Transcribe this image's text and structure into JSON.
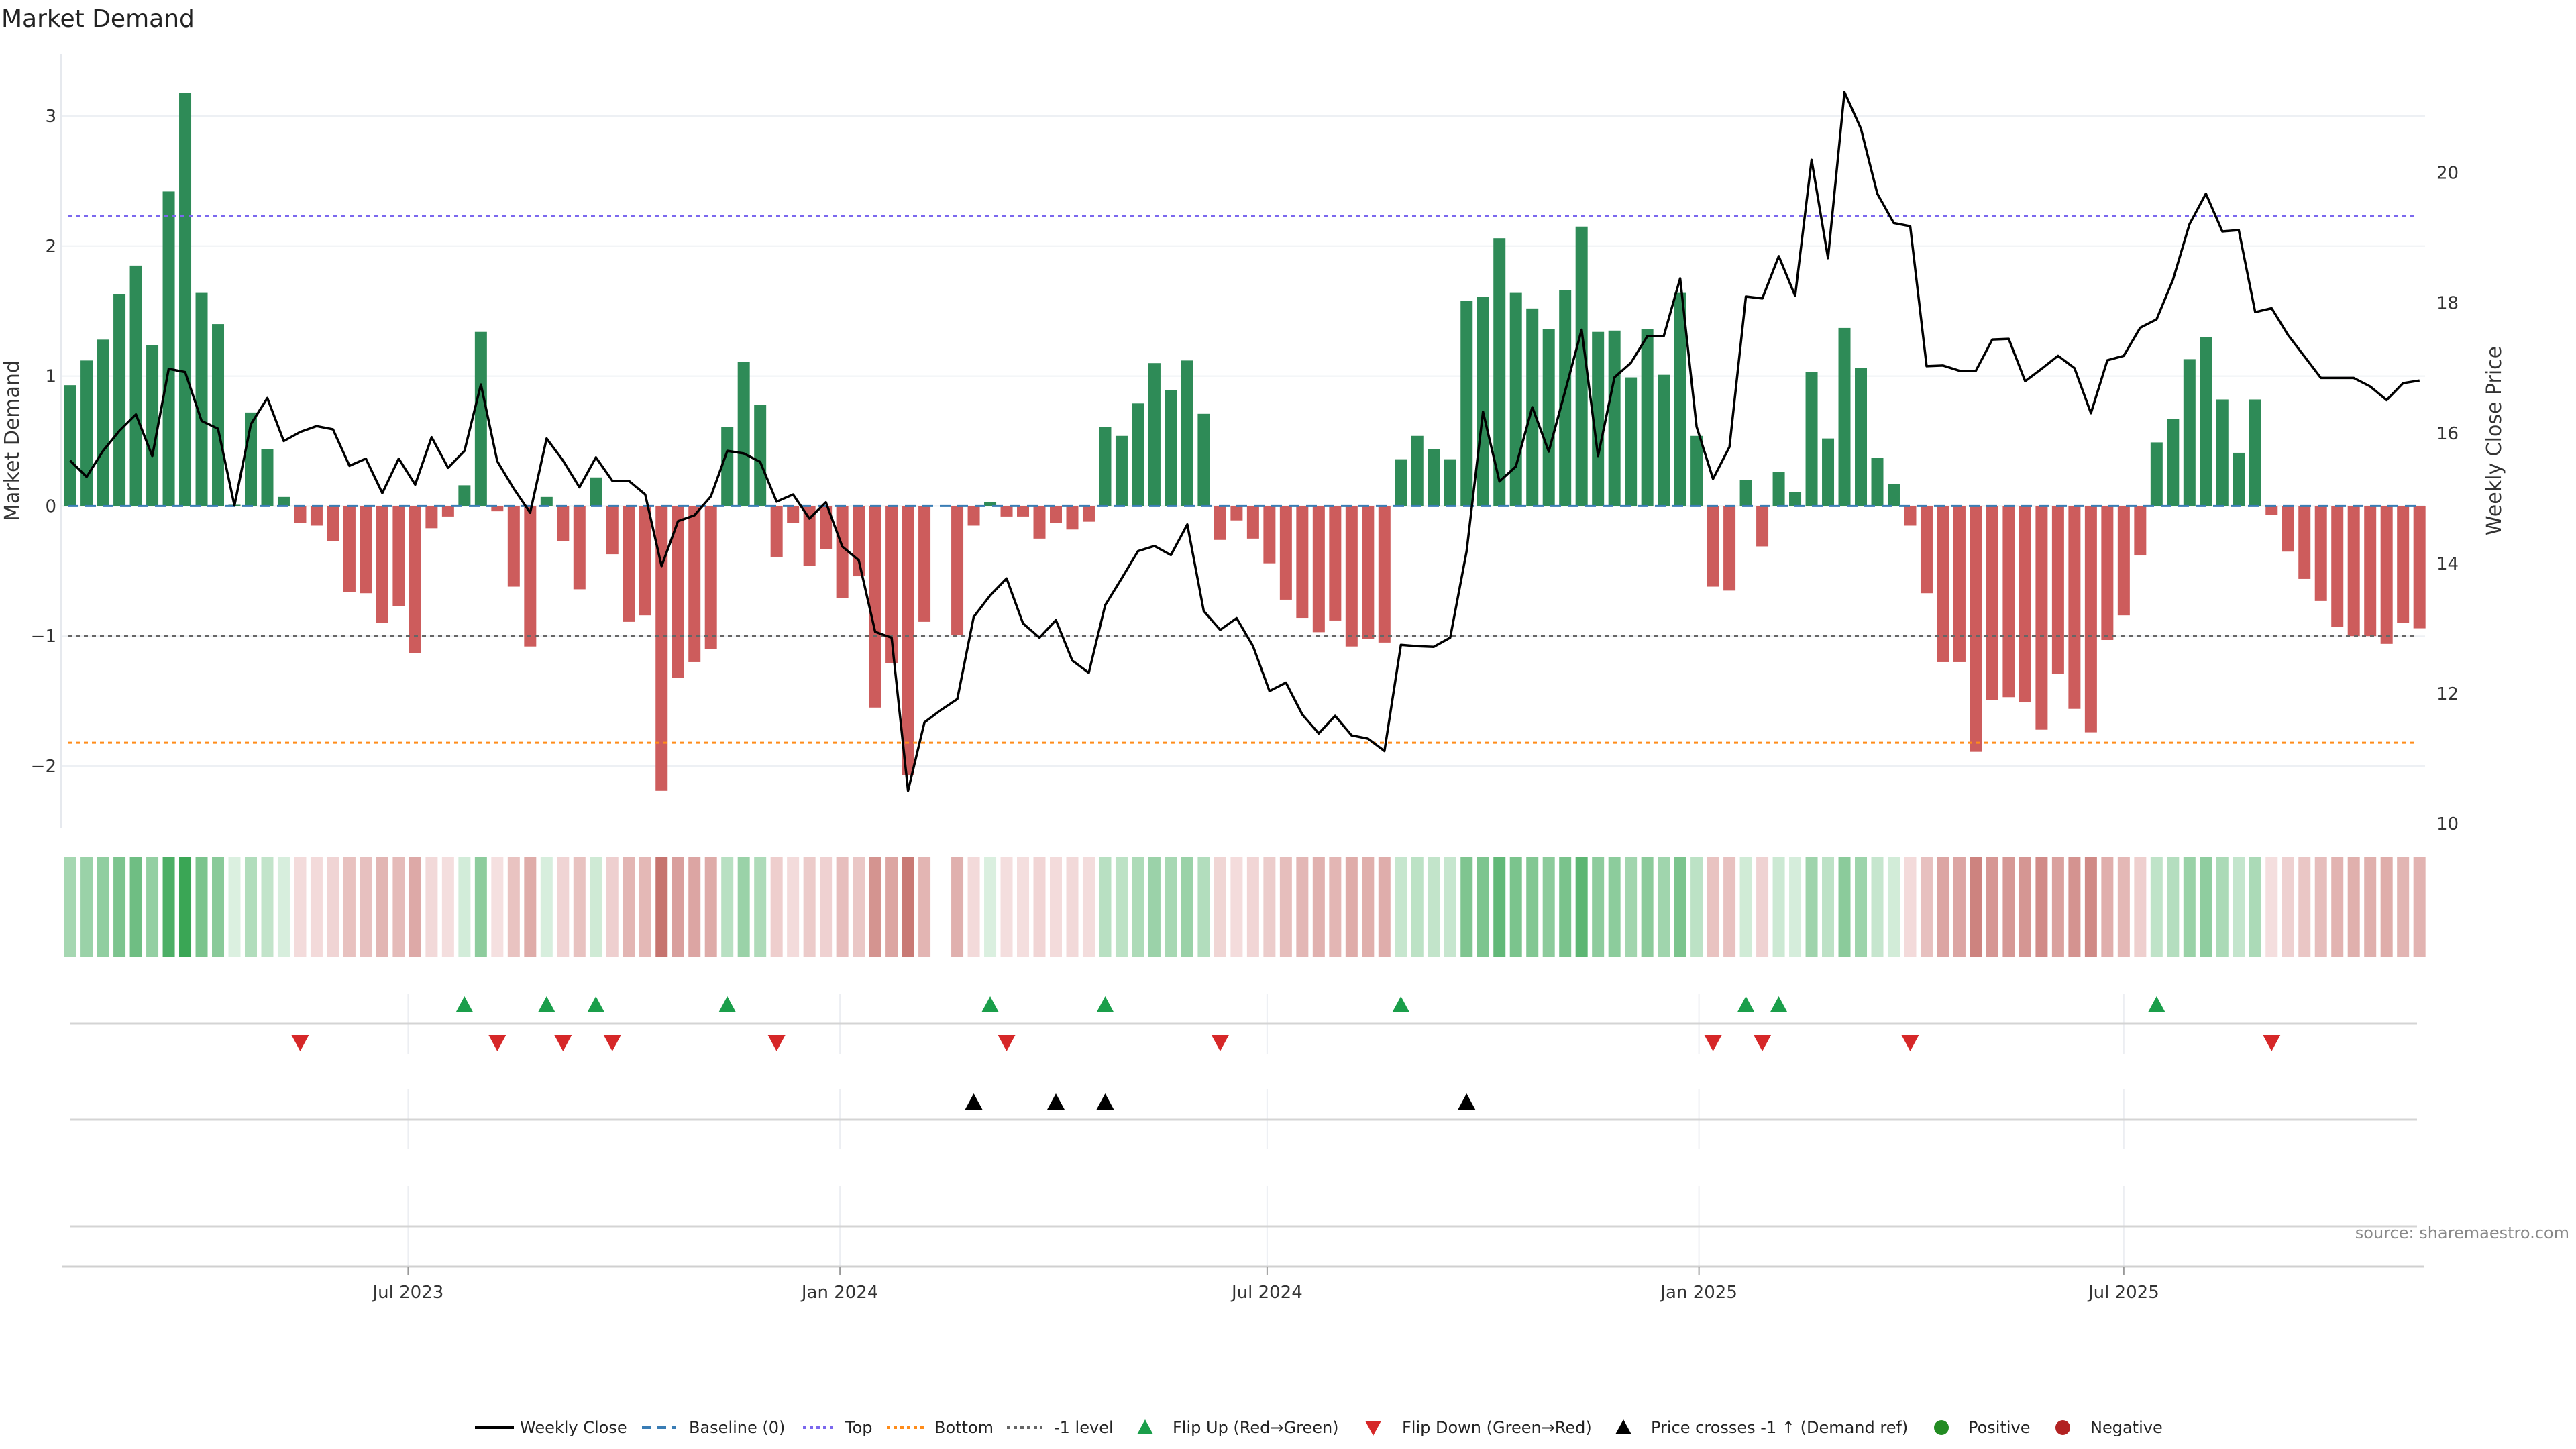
{
  "chart_data": {
    "type": "bar",
    "title": "Market Demand",
    "ylabel": "Market Demand",
    "y2label": "Weekly Close Price",
    "start_date": "2023-02-07",
    "frequency": "weekly",
    "ylim": [
      -2.48,
      3.48
    ],
    "y2lim": [
      9.93,
      21.83
    ],
    "yticks": [
      3,
      2,
      1,
      0,
      -1,
      -2
    ],
    "ytick_labels": [
      "3",
      "2",
      "1",
      "0",
      "−1",
      "−2"
    ],
    "y2ticks": [
      20,
      18,
      16,
      14,
      12,
      10
    ],
    "y2tick_labels": [
      "20",
      "18",
      "16",
      "14",
      "12",
      "10"
    ],
    "xticks": [
      {
        "date": "2023-07-01",
        "label": "Jul 2023"
      },
      {
        "date": "2024-01-01",
        "label": "Jan 2024"
      },
      {
        "date": "2024-07-01",
        "label": "Jul 2024"
      },
      {
        "date": "2025-01-01",
        "label": "Jan 2025"
      },
      {
        "date": "2025-07-01",
        "label": "Jul 2025"
      }
    ],
    "levels": {
      "baseline": 0,
      "top": 2.23,
      "bottom": -1.82,
      "minus_one": -1
    },
    "demand": [
      0.93,
      1.12,
      1.28,
      1.63,
      1.85,
      1.24,
      2.42,
      3.18,
      1.64,
      1.4,
      0.01,
      0.72,
      0.44,
      0.07,
      -0.13,
      -0.15,
      -0.27,
      -0.66,
      -0.67,
      -0.9,
      -0.77,
      -1.13,
      -0.17,
      -0.08,
      0.16,
      1.34,
      -0.04,
      -0.62,
      -1.08,
      0.07,
      -0.27,
      -0.64,
      0.22,
      -0.37,
      -0.89,
      -0.84,
      -2.19,
      -1.32,
      -1.2,
      -1.1,
      0.61,
      1.11,
      0.78,
      -0.39,
      -0.13,
      -0.46,
      -0.33,
      -0.71,
      -0.54,
      -1.55,
      -1.21,
      -2.07,
      -0.89,
      0,
      -0.99,
      -0.15,
      0.03,
      -0.08,
      -0.08,
      -0.25,
      -0.13,
      -0.18,
      -0.12,
      0.61,
      0.54,
      0.79,
      1.1,
      0.89,
      1.12,
      0.71,
      -0.26,
      -0.11,
      -0.25,
      -0.44,
      -0.72,
      -0.86,
      -0.97,
      -0.88,
      -1.08,
      -1.02,
      -1.05,
      0.36,
      0.54,
      0.44,
      0.36,
      1.58,
      1.61,
      2.06,
      1.64,
      1.52,
      1.36,
      1.66,
      2.15,
      1.34,
      1.35,
      0.99,
      1.36,
      1.01,
      1.64,
      0.54,
      -0.62,
      -0.65,
      0.2,
      -0.31,
      0.26,
      0.11,
      1.03,
      0.52,
      1.37,
      1.06,
      0.37,
      0.17,
      -0.15,
      -0.67,
      -1.2,
      -1.2,
      -1.89,
      -1.49,
      -1.47,
      -1.51,
      -1.72,
      -1.29,
      -1.56,
      -1.74,
      -1.03,
      -0.84,
      -0.38,
      0.49,
      0.67,
      1.13,
      1.3,
      0.82,
      0.41,
      0.82,
      -0.07,
      -0.35,
      -0.56,
      -0.73,
      -0.93,
      -1.0,
      -1.0,
      -1.06,
      -0.9,
      -0.94
    ],
    "weekly_close": [
      15.58,
      15.33,
      15.73,
      16.04,
      16.29,
      15.65,
      16.99,
      16.94,
      16.19,
      16.07,
      14.89,
      16.14,
      16.54,
      15.88,
      16.02,
      16.11,
      16.06,
      15.5,
      15.61,
      15.08,
      15.61,
      15.21,
      15.94,
      15.47,
      15.73,
      16.75,
      15.57,
      15.15,
      14.78,
      15.92,
      15.58,
      15.17,
      15.63,
      15.27,
      15.27,
      15.06,
      13.96,
      14.65,
      14.74,
      15.03,
      15.73,
      15.69,
      15.56,
      14.95,
      15.06,
      14.69,
      14.94,
      14.26,
      14.05,
      12.95,
      12.86,
      10.51,
      11.56,
      11.75,
      11.92,
      13.18,
      13.51,
      13.77,
      13.08,
      12.86,
      13.13,
      12.51,
      12.32,
      13.36,
      13.77,
      14.19,
      14.27,
      14.13,
      14.6,
      13.27,
      12.98,
      13.16,
      12.73,
      12.04,
      12.17,
      11.68,
      11.39,
      11.66,
      11.36,
      11.31,
      11.12,
      12.75,
      12.73,
      12.72,
      12.86,
      14.19,
      16.33,
      15.26,
      15.49,
      16.4,
      15.72,
      16.65,
      17.59,
      15.65,
      16.86,
      17.08,
      17.49,
      17.49,
      18.38,
      16.1,
      15.3,
      15.79,
      18.1,
      18.07,
      18.72,
      18.11,
      20.2,
      18.69,
      21.24,
      20.68,
      19.68,
      19.23,
      19.18,
      17.03,
      17.04,
      16.96,
      16.96,
      17.44,
      17.45,
      16.8,
      16.99,
      17.19,
      17.0,
      16.31,
      17.12,
      17.19,
      17.62,
      17.75,
      18.36,
      19.21,
      19.68,
      19.1,
      19.12,
      17.86,
      17.92,
      17.51,
      17.18,
      16.85,
      16.85,
      16.85,
      16.72,
      16.51,
      16.77,
      16.81
    ],
    "flip_up_weeks": [
      25,
      30,
      33,
      41,
      57,
      64,
      82,
      103,
      105,
      128
    ],
    "flip_down_weeks": [
      15,
      27,
      31,
      34,
      44,
      58,
      71,
      101,
      104,
      113,
      135
    ],
    "price_cross_up_weeks": [
      56,
      61,
      64,
      86
    ],
    "legend": [
      {
        "key": "weekly_close",
        "label": "Weekly Close"
      },
      {
        "key": "baseline",
        "label": "Baseline (0)"
      },
      {
        "key": "top",
        "label": "Top"
      },
      {
        "key": "bottom",
        "label": "Bottom"
      },
      {
        "key": "minus_one",
        "label": "-1 level"
      },
      {
        "key": "flip_up",
        "label": "Flip Up (Red→Green)"
      },
      {
        "key": "flip_down",
        "label": "Flip Down (Green→Red)"
      },
      {
        "key": "price_cross",
        "label": "Price crosses -1 ↑ (Demand ref)"
      },
      {
        "key": "positive",
        "label": "Positive"
      },
      {
        "key": "negative",
        "label": "Negative"
      }
    ],
    "legend_position": "bottom",
    "source": "source: sharemaestro.com"
  },
  "colors": {
    "positive": "#2e8b57",
    "negative": "#cd5c5c",
    "line": "#000000",
    "baseline": "#3a7db5",
    "top": "#7b68ee",
    "bottom": "#ff8c1a",
    "minus_one": "#666666",
    "flip_up": "#1a9e4a",
    "flip_down": "#d62728",
    "price_cross": "#000000",
    "legend_positive": "#228b22",
    "legend_negative": "#b22222",
    "grid": "#edf0f4"
  }
}
